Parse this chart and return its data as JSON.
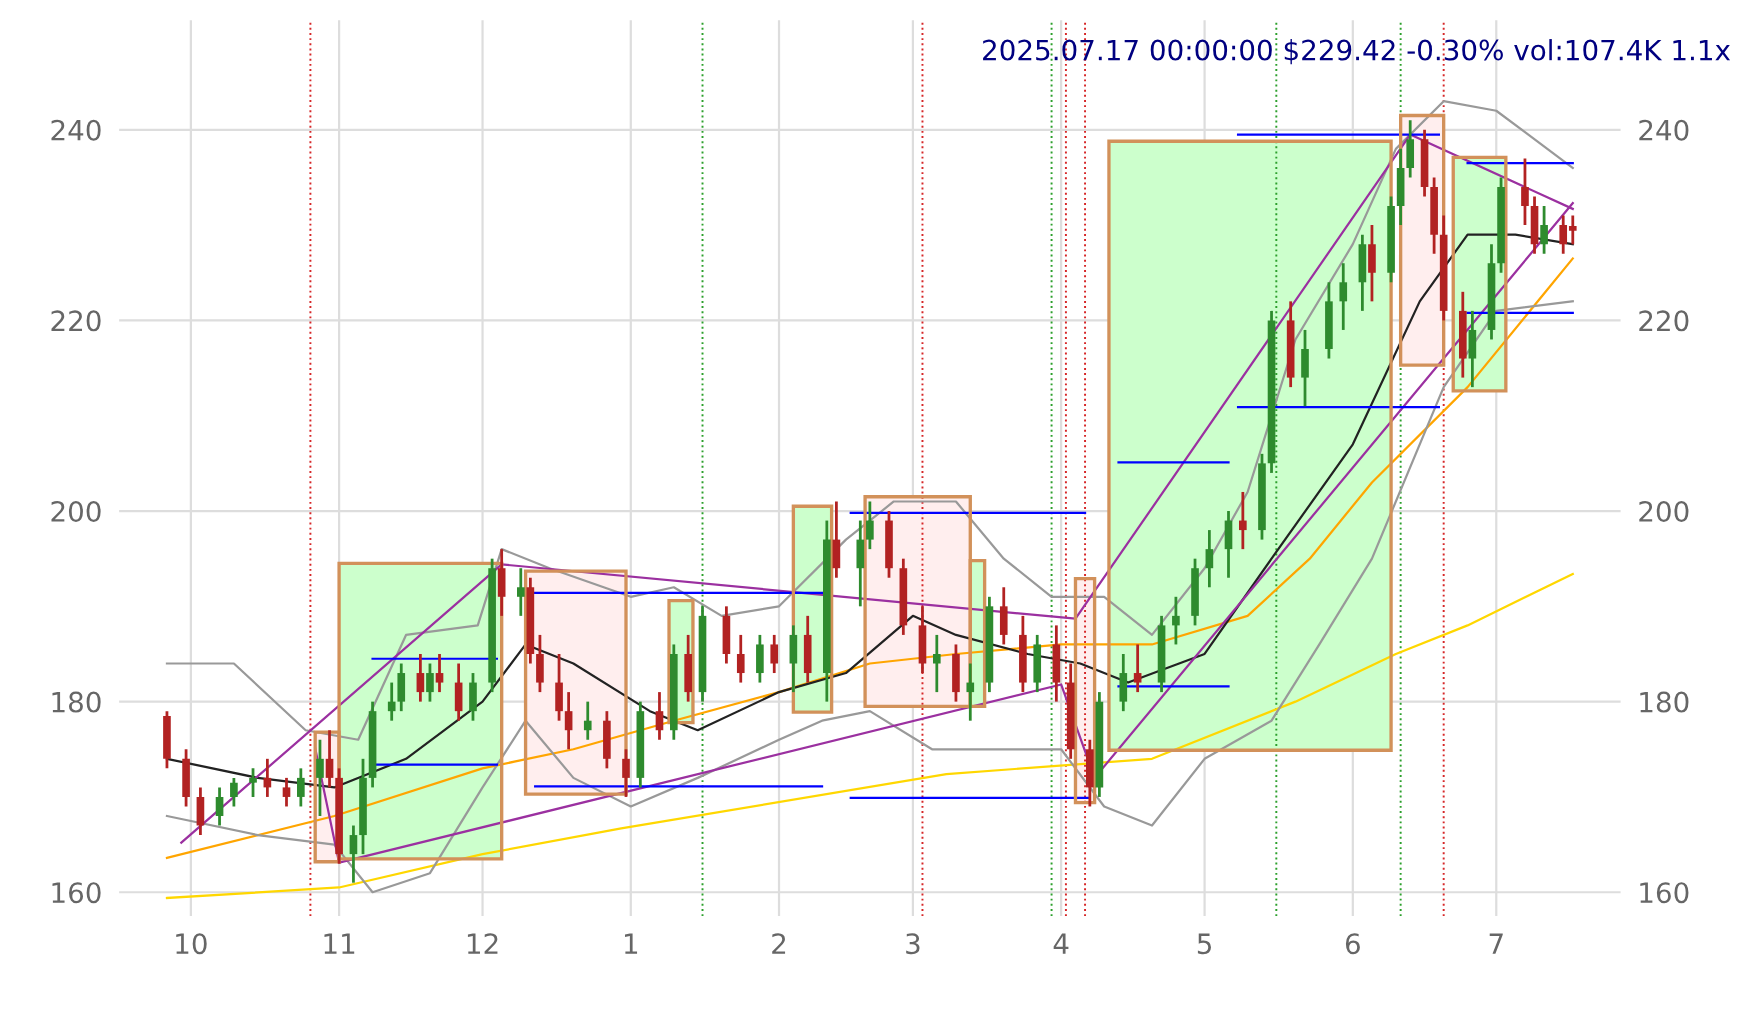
{
  "chart_data": {
    "type": "candlestick",
    "title": "2025.07.17 00:00:00 $229.42 -0.30% vol:107.4K 1.1x",
    "x": [
      "2024-09-26",
      "2024-09-30",
      "2024-10-03",
      "2024-10-07",
      "2024-10-10",
      "2024-10-14",
      "2024-10-17",
      "2024-10-21",
      "2024-10-24",
      "2024-10-28",
      "2024-10-30",
      "2024-11-01",
      "2024-11-04",
      "2024-11-06",
      "2024-11-08",
      "2024-11-12",
      "2024-11-14",
      "2024-11-18",
      "2024-11-20",
      "2024-11-22",
      "2024-11-26",
      "2024-11-29",
      "2024-12-03",
      "2024-12-05",
      "2024-12-09",
      "2024-12-11",
      "2024-12-13",
      "2024-12-17",
      "2024-12-19",
      "2024-12-23",
      "2024-12-27",
      "2024-12-31",
      "2025-01-03",
      "2025-01-07",
      "2025-01-10",
      "2025-01-13",
      "2025-01-16",
      "2025-01-21",
      "2025-01-24",
      "2025-01-28",
      "2025-01-31",
      "2025-02-04",
      "2025-02-07",
      "2025-02-11",
      "2025-02-13",
      "2025-02-18",
      "2025-02-20",
      "2025-02-24",
      "2025-02-27",
      "2025-03-03",
      "2025-03-06",
      "2025-03-10",
      "2025-03-13",
      "2025-03-17",
      "2025-03-20",
      "2025-03-24",
      "2025-03-27",
      "2025-03-31",
      "2025-04-03",
      "2025-04-07",
      "2025-04-09",
      "2025-04-14",
      "2025-04-17",
      "2025-04-22",
      "2025-04-25",
      "2025-04-29",
      "2025-05-02",
      "2025-05-06",
      "2025-05-09",
      "2025-05-13",
      "2025-05-15",
      "2025-05-19",
      "2025-05-22",
      "2025-05-27",
      "2025-05-30",
      "2025-06-03",
      "2025-06-05",
      "2025-06-09",
      "2025-06-11",
      "2025-06-13",
      "2025-06-16",
      "2025-06-18",
      "2025-06-20",
      "2025-06-24",
      "2025-06-26",
      "2025-06-30",
      "2025-07-02",
      "2025-07-07",
      "2025-07-09",
      "2025-07-11",
      "2025-07-15",
      "2025-07-17"
    ],
    "ohlc": [
      [
        178.5,
        179,
        173,
        174
      ],
      [
        174,
        175,
        169,
        170
      ],
      [
        170,
        171,
        166,
        167
      ],
      [
        168,
        171,
        167,
        170
      ],
      [
        170,
        172,
        169,
        171.5
      ],
      [
        171.5,
        173,
        170,
        172
      ],
      [
        172,
        174,
        170,
        171
      ],
      [
        171,
        172,
        169,
        170
      ],
      [
        170,
        173,
        169,
        172
      ],
      [
        172,
        176,
        168,
        174
      ],
      [
        174,
        177,
        171,
        172
      ],
      [
        172,
        173,
        163,
        164
      ],
      [
        164,
        167,
        161,
        166
      ],
      [
        166,
        174,
        164,
        172
      ],
      [
        172,
        180,
        171,
        179
      ],
      [
        179,
        182,
        178,
        180
      ],
      [
        180,
        184,
        179,
        183
      ],
      [
        183,
        185,
        180,
        181
      ],
      [
        181,
        184,
        180,
        183
      ],
      [
        183,
        185,
        181,
        182
      ],
      [
        182,
        184,
        178,
        179
      ],
      [
        179,
        183,
        178,
        182
      ],
      [
        182,
        195,
        181,
        194
      ],
      [
        194,
        196,
        189,
        191
      ],
      [
        191,
        194,
        189,
        192
      ],
      [
        192,
        193,
        184,
        185
      ],
      [
        185,
        187,
        181,
        182
      ],
      [
        182,
        185,
        178,
        179
      ],
      [
        179,
        181,
        175,
        177
      ],
      [
        177,
        180,
        176,
        178
      ],
      [
        178,
        179,
        173,
        174
      ],
      [
        174,
        175,
        170,
        172
      ],
      [
        172,
        180,
        171,
        179
      ],
      [
        179,
        181,
        176,
        177
      ],
      [
        177,
        186,
        176,
        185
      ],
      [
        185,
        187,
        180,
        181
      ],
      [
        181,
        190,
        180,
        189
      ],
      [
        189,
        190,
        184,
        185
      ],
      [
        185,
        187,
        182,
        183
      ],
      [
        183,
        187,
        182,
        186
      ],
      [
        186,
        187,
        183,
        184
      ],
      [
        184,
        188,
        181,
        187
      ],
      [
        187,
        189,
        182,
        183
      ],
      [
        183,
        199,
        180,
        197
      ],
      [
        197,
        201,
        193,
        194
      ],
      [
        194,
        199,
        190,
        197
      ],
      [
        197,
        201,
        196,
        199
      ],
      [
        199,
        200,
        193,
        194
      ],
      [
        194,
        195,
        187,
        188
      ],
      [
        188,
        190,
        183,
        184
      ],
      [
        184,
        187,
        181,
        185
      ],
      [
        185,
        186,
        180,
        181
      ],
      [
        181,
        184,
        178,
        182
      ],
      [
        182,
        191,
        181,
        190
      ],
      [
        190,
        192,
        186,
        187
      ],
      [
        187,
        189,
        181,
        182
      ],
      [
        182,
        187,
        181,
        186
      ],
      [
        186,
        188,
        180,
        182
      ],
      [
        182,
        184,
        174,
        175
      ],
      [
        175,
        176,
        169,
        171
      ],
      [
        171,
        181,
        170,
        180
      ],
      [
        180,
        185,
        179,
        183
      ],
      [
        183,
        186,
        181,
        182
      ],
      [
        182,
        189,
        181,
        188
      ],
      [
        188,
        191,
        186,
        189
      ],
      [
        189,
        195,
        188,
        194
      ],
      [
        194,
        198,
        192,
        196
      ],
      [
        196,
        200,
        193,
        199
      ],
      [
        199,
        202,
        196,
        198
      ],
      [
        198,
        206,
        197,
        205
      ],
      [
        205,
        221,
        204,
        220
      ],
      [
        220,
        222,
        213,
        214
      ],
      [
        214,
        219,
        211,
        217
      ],
      [
        217,
        224,
        216,
        222
      ],
      [
        222,
        226,
        219,
        224
      ],
      [
        224,
        229,
        221,
        228
      ],
      [
        228,
        230,
        222,
        225
      ],
      [
        225,
        233,
        224,
        232
      ],
      [
        232,
        238,
        230,
        236
      ],
      [
        236,
        241,
        235,
        239
      ],
      [
        239,
        240,
        233,
        234
      ],
      [
        234,
        235,
        227,
        229
      ],
      [
        229,
        231,
        220,
        221
      ],
      [
        221,
        223,
        214,
        216
      ],
      [
        216,
        221,
        213,
        219
      ],
      [
        219,
        228,
        218,
        226
      ],
      [
        226,
        235,
        225,
        234
      ],
      [
        234,
        237,
        230,
        232
      ],
      [
        232,
        233,
        227,
        228
      ],
      [
        228,
        232,
        227,
        230
      ],
      [
        230,
        231,
        227,
        228
      ],
      [
        229.9,
        231,
        228,
        229.4
      ]
    ],
    "series": [
      {
        "type": "area",
        "color": "#ccffcc",
        "x": [
          "2024-11-01",
          "2024-11-01",
          "2024-12-05",
          "2024-12-05"
        ],
        "values": [
          163.5,
          194.5,
          194.5,
          163.5
        ]
      },
      {
        "type": "area",
        "color": "#ffeeee",
        "x": [
          "2024-10-27",
          "2024-10-27",
          "2024-11-01",
          "2024-11-01"
        ],
        "values": [
          163.2,
          176.8,
          176.8,
          163.2
        ]
      },
      {
        "type": "area",
        "color": "#ffeeee",
        "x": [
          "2024-12-10",
          "2024-12-10",
          "2024-12-31",
          "2024-12-31"
        ],
        "values": [
          170.3,
          193.7,
          193.7,
          170.3
        ]
      },
      {
        "type": "area",
        "color": "#ccffcc",
        "x": [
          "2025-01-09",
          "2025-01-09",
          "2025-01-14",
          "2025-01-14"
        ],
        "values": [
          177.8,
          190.6,
          190.6,
          177.8
        ]
      },
      {
        "type": "area",
        "color": "#ccffcc",
        "x": [
          "2025-02-04",
          "2025-02-04",
          "2025-02-12",
          "2025-02-12"
        ],
        "values": [
          178.9,
          200.5,
          200.5,
          178.9
        ]
      },
      {
        "type": "area",
        "color": "#ffeeee",
        "x": [
          "2025-02-19",
          "2025-02-19",
          "2025-03-13",
          "2025-03-13"
        ],
        "values": [
          179.5,
          201.5,
          201.5,
          179.5
        ]
      },
      {
        "type": "area",
        "color": "#ccffcc",
        "x": [
          "2025-03-13",
          "2025-03-13",
          "2025-03-16",
          "2025-03-16"
        ],
        "values": [
          179.5,
          194.8,
          194.8,
          179.5
        ]
      },
      {
        "type": "area",
        "color": "#ffeeee",
        "x": [
          "2025-04-04",
          "2025-04-04",
          "2025-04-08",
          "2025-04-08"
        ],
        "values": [
          169.4,
          192.9,
          192.9,
          169.4
        ]
      },
      {
        "type": "area",
        "color": "#ccffcc",
        "x": [
          "2025-04-11",
          "2025-04-11",
          "2025-06-09",
          "2025-06-09"
        ],
        "values": [
          174.9,
          238.8,
          238.8,
          174.9
        ]
      },
      {
        "type": "area",
        "color": "#ffeeee",
        "x": [
          "2025-06-11",
          "2025-06-11",
          "2025-06-20",
          "2025-06-20"
        ],
        "values": [
          215.3,
          241.5,
          241.5,
          215.3
        ]
      },
      {
        "type": "area",
        "color": "#ccffcc",
        "x": [
          "2025-06-22",
          "2025-06-22",
          "2025-07-03",
          "2025-07-03"
        ],
        "values": [
          212.6,
          237.1,
          237.1,
          212.6
        ]
      },
      {
        "type": "line",
        "color": "#ffd700",
        "x": [
          "2024-09-26",
          "2024-11-01",
          "2024-12-01",
          "2024-12-30",
          "2025-03-08",
          "2025-04-20",
          "2025-05-20",
          "2025-06-10",
          "2025-06-25",
          "2025-07-17"
        ],
        "values": [
          159.4,
          160.5,
          164,
          166.7,
          172.4,
          174,
          180,
          185,
          188,
          193.4
        ]
      },
      {
        "type": "line",
        "color": "#ffa500",
        "x": [
          "2024-09-26",
          "2024-10-31",
          "2024-12-01",
          "2024-12-20",
          "2025-01-10",
          "2025-02-01",
          "2025-02-20",
          "2025-03-10",
          "2025-04-01",
          "2025-04-20",
          "2025-05-10",
          "2025-05-23",
          "2025-06-05",
          "2025-06-25",
          "2025-07-17"
        ],
        "values": [
          163.6,
          168,
          173,
          175,
          178,
          181,
          184,
          185,
          186,
          186,
          189,
          195,
          203,
          213,
          226.5
        ]
      },
      {
        "type": "line",
        "color": "#999999",
        "x": [
          "2024-09-26",
          "2024-10-10",
          "2024-10-25",
          "2024-11-05",
          "2024-11-15",
          "2024-11-30",
          "2024-12-05",
          "2024-12-15",
          "2025-01-01",
          "2025-01-10",
          "2025-01-20",
          "2025-02-01",
          "2025-02-15",
          "2025-02-25",
          "2025-03-10",
          "2025-03-20",
          "2025-03-30",
          "2025-04-10",
          "2025-04-20",
          "2025-05-01",
          "2025-05-10",
          "2025-05-20",
          "2025-06-01",
          "2025-06-10",
          "2025-06-20",
          "2025-07-01",
          "2025-07-17"
        ],
        "values": [
          184,
          184,
          177,
          176,
          187,
          188,
          196,
          194,
          191,
          192,
          189,
          190,
          197,
          201,
          201,
          195,
          191,
          191,
          187,
          194,
          202,
          218,
          228,
          238,
          243,
          242,
          236
        ]
      },
      {
        "type": "line",
        "color": "#999999",
        "x": [
          "2024-09-26",
          "2024-10-15",
          "2024-10-31",
          "2024-11-08",
          "2024-11-20",
          "2024-12-01",
          "2024-12-10",
          "2024-12-20",
          "2025-01-01",
          "2025-01-15",
          "2025-02-01",
          "2025-02-10",
          "2025-02-20",
          "2025-03-05",
          "2025-03-20",
          "2025-04-01",
          "2025-04-10",
          "2025-04-20",
          "2025-05-01",
          "2025-05-15",
          "2025-05-25",
          "2025-06-05",
          "2025-06-20",
          "2025-07-01",
          "2025-07-17"
        ],
        "values": [
          168,
          166,
          165,
          160,
          162,
          171,
          178,
          172,
          169,
          172,
          176,
          178,
          179,
          175,
          175,
          175,
          169,
          167,
          174,
          178,
          186,
          195,
          213,
          221,
          222
        ]
      },
      {
        "type": "line",
        "color": "#222222",
        "x": [
          "2024-09-26",
          "2024-10-15",
          "2024-10-31",
          "2024-11-15",
          "2024-12-01",
          "2024-12-10",
          "2024-12-20",
          "2025-01-05",
          "2025-01-15",
          "2025-02-01",
          "2025-02-15",
          "2025-03-01",
          "2025-03-10",
          "2025-03-25",
          "2025-04-05",
          "2025-04-15",
          "2025-05-01",
          "2025-05-15",
          "2025-06-01",
          "2025-06-15",
          "2025-06-25",
          "2025-07-05",
          "2025-07-17"
        ],
        "values": [
          174,
          172,
          171,
          174,
          180,
          186,
          184,
          179,
          177,
          181,
          183,
          189,
          187,
          185,
          184,
          182,
          185,
          195,
          207,
          222,
          229,
          229,
          228
        ]
      },
      {
        "type": "line",
        "color": "#9b30a0",
        "x": [
          "2024-09-29",
          "2024-12-05",
          "2025-04-04",
          "2025-06-13",
          "2025-07-17"
        ],
        "values": [
          165.2,
          194.4,
          188.7,
          239.5,
          231.7
        ]
      },
      {
        "type": "line",
        "color": "#9b30a0",
        "x": [
          "2024-10-27",
          "2024-11-01",
          "2025-04-01",
          "2025-04-08",
          "2025-07-17"
        ],
        "values": [
          175.1,
          163.1,
          181.8,
          172,
          232.3
        ]
      },
      {
        "type": "line",
        "color": "#0000ff",
        "x": [
          "2024-11-08",
          "2024-12-04"
        ],
        "values": [
          184.5,
          184.5
        ]
      },
      {
        "type": "line",
        "color": "#0000ff",
        "x": [
          "2024-11-08",
          "2024-12-04"
        ],
        "values": [
          173.4,
          173.4
        ]
      },
      {
        "type": "line",
        "color": "#0000ff",
        "x": [
          "2024-12-12",
          "2025-02-10"
        ],
        "values": [
          191.4,
          191.4
        ]
      },
      {
        "type": "line",
        "color": "#0000ff",
        "x": [
          "2024-12-12",
          "2025-02-10"
        ],
        "values": [
          171.1,
          171.1
        ]
      },
      {
        "type": "line",
        "color": "#0000ff",
        "x": [
          "2025-02-16",
          "2025-04-06"
        ],
        "values": [
          199.8,
          199.8
        ]
      },
      {
        "type": "line",
        "color": "#0000ff",
        "x": [
          "2025-02-16",
          "2025-04-07"
        ],
        "values": [
          169.9,
          169.9
        ]
      },
      {
        "type": "line",
        "color": "#0000ff",
        "x": [
          "2025-04-13",
          "2025-05-06"
        ],
        "values": [
          181.6,
          181.6
        ]
      },
      {
        "type": "line",
        "color": "#0000ff",
        "x": [
          "2025-04-13",
          "2025-05-06"
        ],
        "values": [
          205.1,
          205.1
        ]
      },
      {
        "type": "line",
        "color": "#0000ff",
        "x": [
          "2025-05-08",
          "2025-06-19"
        ],
        "values": [
          210.9,
          210.9
        ]
      },
      {
        "type": "line",
        "color": "#0000ff",
        "x": [
          "2025-05-08",
          "2025-06-19"
        ],
        "values": [
          239.5,
          239.5
        ]
      },
      {
        "type": "line",
        "color": "#0000ff",
        "x": [
          "2025-06-25",
          "2025-07-17"
        ],
        "values": [
          236.5,
          236.5
        ]
      },
      {
        "type": "line",
        "color": "#0000ff",
        "x": [
          "2025-06-25",
          "2025-07-17"
        ],
        "values": [
          220.8,
          220.8
        ]
      }
    ],
    "ref_lines": [
      {
        "axis": "x",
        "value": "2024-10-26",
        "color": "#d62728",
        "line_style": "dotted"
      },
      {
        "axis": "x",
        "value": "2025-01-16",
        "color": "#2ca02c",
        "line_style": "dotted"
      },
      {
        "axis": "x",
        "value": "2025-03-03",
        "color": "#d62728",
        "line_style": "dotted"
      },
      {
        "axis": "x",
        "value": "2025-03-30",
        "color": "#2ca02c",
        "line_style": "dotted"
      },
      {
        "axis": "x",
        "value": "2025-04-02",
        "color": "#d62728",
        "line_style": "dotted"
      },
      {
        "axis": "x",
        "value": "2025-04-06",
        "color": "#d62728",
        "line_style": "dotted"
      },
      {
        "axis": "x",
        "value": "2025-05-16",
        "color": "#2ca02c",
        "line_style": "dotted"
      },
      {
        "axis": "x",
        "value": "2025-06-11",
        "color": "#2ca02c",
        "line_style": "dotted"
      },
      {
        "axis": "x",
        "value": "2025-06-20",
        "color": "#d62728",
        "line_style": "dotted"
      }
    ],
    "xlim": [
      "2024-09-16",
      "2025-07-27"
    ],
    "xticks": [
      {
        "value": "2024-10-01",
        "label": "10"
      },
      {
        "value": "2024-11-01",
        "label": "11"
      },
      {
        "value": "2024-12-01",
        "label": "12"
      },
      {
        "value": "2025-01-01",
        "label": "1"
      },
      {
        "value": "2025-02-01",
        "label": "2"
      },
      {
        "value": "2025-03-01",
        "label": "3"
      },
      {
        "value": "2025-04-01",
        "label": "4"
      },
      {
        "value": "2025-05-01",
        "label": "5"
      },
      {
        "value": "2025-06-01",
        "label": "6"
      },
      {
        "value": "2025-07-01",
        "label": "7"
      }
    ],
    "ylim": [
      157.5,
      251.5
    ],
    "yticks": [
      160,
      180,
      200,
      220,
      240
    ],
    "y2lim": [
      157.5,
      251.5
    ],
    "y2ticks": [
      160,
      180,
      200,
      220,
      240
    ],
    "grid": true,
    "legend": false
  }
}
